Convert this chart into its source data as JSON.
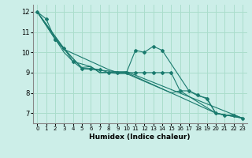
{
  "title": "",
  "xlabel": "Humidex (Indice chaleur)",
  "background_color": "#cceee8",
  "grid_color": "#aaddcc",
  "line_color": "#1a7a6e",
  "xlim": [
    -0.5,
    23.5
  ],
  "ylim": [
    6.5,
    12.35
  ],
  "xticks": [
    0,
    1,
    2,
    3,
    4,
    5,
    6,
    7,
    8,
    9,
    10,
    11,
    12,
    13,
    14,
    15,
    16,
    17,
    18,
    19,
    20,
    21,
    22,
    23
  ],
  "yticks": [
    7,
    8,
    9,
    10,
    11,
    12
  ],
  "series": [
    {
      "x": [
        0,
        1,
        2,
        3,
        4,
        5,
        6,
        7,
        8,
        9,
        10,
        11,
        12,
        13,
        14,
        15,
        16,
        17,
        18,
        19,
        20,
        21,
        22,
        23
      ],
      "y": [
        12.0,
        11.65,
        10.65,
        10.2,
        9.55,
        9.2,
        9.2,
        9.15,
        9.0,
        9.0,
        9.0,
        9.0,
        9.0,
        9.0,
        9.0,
        9.0,
        8.1,
        8.1,
        7.9,
        7.7,
        7.0,
        6.9,
        6.9,
        6.75
      ],
      "markers": [
        true,
        true,
        true,
        true,
        true,
        true,
        true,
        true,
        true,
        true,
        true,
        true,
        true,
        true,
        true,
        true,
        true,
        true,
        true,
        true,
        true,
        true,
        true,
        true
      ]
    },
    {
      "x": [
        0,
        3,
        5,
        10,
        20,
        23
      ],
      "y": [
        12.0,
        10.2,
        9.2,
        9.0,
        7.0,
        6.75
      ],
      "markers": [
        false,
        false,
        false,
        false,
        false,
        false
      ]
    },
    {
      "x": [
        0,
        3,
        4,
        6,
        7,
        10,
        23
      ],
      "y": [
        12.0,
        10.0,
        9.55,
        9.3,
        9.0,
        9.05,
        6.75
      ],
      "markers": [
        false,
        false,
        false,
        false,
        false,
        false,
        false
      ]
    },
    {
      "x": [
        0,
        2,
        3,
        8,
        9,
        10,
        11,
        12,
        13,
        14,
        17,
        18,
        19,
        20,
        21,
        22,
        23
      ],
      "y": [
        12.0,
        10.65,
        10.15,
        9.15,
        9.0,
        9.0,
        10.1,
        10.0,
        10.3,
        10.1,
        8.1,
        7.85,
        7.75,
        7.0,
        6.9,
        6.9,
        6.75
      ],
      "markers": [
        false,
        true,
        false,
        false,
        false,
        false,
        true,
        true,
        true,
        true,
        false,
        false,
        false,
        false,
        false,
        false,
        false
      ]
    },
    {
      "x": [
        0,
        3,
        5,
        6,
        7,
        8,
        9,
        10,
        15,
        16,
        20,
        23
      ],
      "y": [
        12.0,
        10.15,
        9.25,
        9.3,
        9.0,
        9.0,
        8.95,
        8.95,
        8.0,
        8.1,
        7.0,
        6.75
      ],
      "markers": [
        false,
        false,
        false,
        false,
        false,
        false,
        false,
        false,
        false,
        false,
        false,
        false
      ]
    }
  ]
}
